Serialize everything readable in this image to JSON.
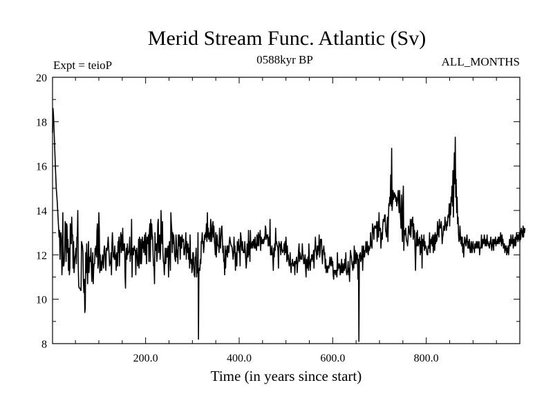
{
  "chart_data": {
    "type": "line",
    "title": "Merid Stream Func. Atlantic (Sv)",
    "subtitle_left": "Expt = teioP",
    "subtitle_center": "0588kyr BP",
    "subtitle_right": "ALL_MONTHS",
    "xlabel": "Time (in years since start)",
    "ylabel": "",
    "xlim": [
      1,
      1000
    ],
    "ylim": [
      8,
      20
    ],
    "x_ticks": [
      200,
      400,
      600,
      800
    ],
    "x_tick_labels": [
      "200.0",
      "400.0",
      "600.0",
      "800.0"
    ],
    "y_ticks": [
      8,
      10,
      12,
      14,
      16,
      18,
      20
    ],
    "y_tick_labels": [
      "8",
      "10",
      "12",
      "14",
      "16",
      "18",
      "20"
    ],
    "grid": false,
    "series": [
      {
        "name": "Merid Stream Func. Atlantic",
        "color": "#000000",
        "x_start": 1,
        "x_step": 1,
        "values": [
          17.5,
          18.6,
          18.3,
          17.8,
          17.2,
          16.6,
          16.0,
          15.5,
          15.0,
          14.7,
          14.4,
          14.0,
          13.6,
          13.2,
          12.8,
          13.1,
          11.8,
          12.9,
          13.0,
          12.7,
          11.1,
          11.6,
          13.9,
          11.5,
          11.5,
          11.7,
          12.3,
          13.5,
          13.4,
          11.7,
          13.4,
          13.3,
          12.1,
          12.7,
          11.3,
          12.3,
          11.1,
          11.4,
          13.4,
          12.5,
          12.5,
          13.7,
          12.9,
          12.9,
          11.4,
          12.6,
          11.2,
          11.5,
          11.9,
          12.0,
          12.3,
          11.6,
          12.8,
          12.8,
          14.0,
          11.5,
          10.6,
          10.5,
          10.5,
          10.5,
          10.4,
          10.4,
          12.6,
          12.5,
          12.4,
          12.1,
          10.8,
          10.3,
          10.9,
          9.4,
          9.6,
          12.1,
          11.2,
          12.5,
          11.4,
          10.7,
          11.9,
          12.6,
          11.2,
          11.7,
          11.9,
          11.7,
          12.3,
          11.5,
          10.8,
          11.6,
          12.1,
          10.7,
          11.4,
          11.6,
          11.6,
          12.3,
          12.0,
          12.4,
          11.9,
          13.1,
          13.4,
          11.4,
          11.6,
          13.9,
          13.2,
          11.2,
          12.0,
          11.3,
          11.7,
          11.3,
          11.8,
          12.0,
          11.6,
          11.4,
          12.2,
          12.4,
          12.1,
          11.7,
          11.3,
          12.3,
          12.2,
          12.2,
          12.5,
          12.8,
          12.3,
          12.0,
          11.5,
          11.7,
          11.6,
          12.1,
          11.1,
          12.5,
          13.0,
          12.5,
          11.9,
          12.1,
          11.8,
          12.4,
          11.8,
          12.0,
          11.3,
          12.1,
          11.5,
          11.5,
          12.6,
          12.1,
          12.8,
          11.5,
          12.3,
          12.7,
          13.0,
          12.1,
          12.9,
          12.2,
          13.2,
          12.2,
          12.5,
          12.2,
          12.5,
          11.1,
          10.5,
          12.0,
          12.3,
          11.8,
          12.5,
          12.0,
          12.1,
          12.1,
          12.3,
          12.8,
          11.7,
          12.1,
          12.0,
          13.6,
          11.0,
          12.2,
          12.3,
          12.0,
          12.3,
          12.4,
          12.2,
          12.2,
          11.1,
          12.2,
          12.3,
          11.9,
          11.5,
          11.6,
          12.7,
          11.4,
          12.8,
          12.2,
          11.6,
          12.7,
          11.6,
          12.0,
          12.8,
          12.3,
          12.6,
          12.1,
          12.6,
          12.9,
          12.0,
          13.0,
          12.2,
          11.6,
          12.8,
          12.7,
          12.5,
          12.9,
          11.7,
          13.0,
          13.4,
          11.7,
          13.6,
          12.7,
          13.4,
          12.9,
          12.8,
          12.0,
          11.5,
          11.5,
          10.7,
          13.0,
          12.2,
          12.4,
          12.5,
          11.7,
          12.1,
          13.4,
          13.6,
          12.1,
          12.5,
          12.9,
          11.8,
          12.2,
          14.0,
          12.8,
          12.5,
          13.5,
          12.1,
          11.7,
          11.6,
          11.1,
          11.8,
          12.3,
          11.6,
          11.9,
          12.3,
          11.9,
          12.0,
          12.4,
          11.0,
          12.2,
          12.6,
          11.9,
          11.3,
          13.9,
          13.4,
          13.1,
          12.1,
          13.0,
          12.5,
          12.9,
          12.5,
          12.0,
          11.8,
          11.7,
          12.9,
          12.5,
          11.9,
          12.2,
          11.6,
          12.9,
          12.4,
          12.9,
          12.7,
          11.8,
          12.8,
          12.8,
          12.3,
          12.9,
          12.6,
          12.6,
          12.7,
          12.0,
          12.0,
          12.3,
          12.5,
          13.0,
          11.8,
          12.6,
          12.3,
          12.1,
          12.5,
          11.8,
          12.3,
          11.4,
          12.9,
          11.9,
          11.6,
          11.8,
          11.2,
          11.4,
          12.1,
          12.1,
          11.4,
          11.1,
          11.0,
          11.9,
          11.8,
          12.3,
          11.0,
          11.7,
          11.2,
          13.0,
          8.2,
          11.3,
          11.4,
          11.3,
          11.8,
          11.6,
          12.6,
          12.6,
          13.0,
          12.5,
          12.6,
          12.1,
          12.4,
          12.9,
          12.7,
          13.0,
          12.8,
          13.4,
          12.6,
          13.9,
          12.8,
          13.2,
          12.7,
          12.8,
          13.0,
          12.6,
          13.6,
          13.4,
          12.6,
          12.8,
          13.3,
          13.5,
          12.8,
          13.3,
          12.6,
          12.4,
          12.0,
          13.0,
          11.9,
          12.3,
          12.9,
          12.5,
          12.4,
          12.4,
          12.1,
          13.2,
          12.6,
          12.3,
          12.8,
          13.2,
          13.3,
          12.8,
          12.1,
          12.4,
          11.7,
          11.8,
          11.1,
          12.4,
          11.4,
          12.2,
          12.0,
          12.4,
          11.9,
          12.4,
          12.4,
          12.1,
          12.6,
          12.8,
          12.6,
          12.5,
          12.4,
          12.4,
          12.3,
          12.1,
          11.8,
          12.0,
          12.8,
          12.1,
          12.4,
          11.3,
          11.8,
          12.1,
          11.5,
          12.6,
          12.3,
          12.2,
          12.7,
          12.1,
          12.4,
          11.5,
          13.0,
          12.8,
          12.4,
          12.2,
          12.6,
          12.3,
          12.1,
          12.1,
          12.1,
          12.6,
          12.2,
          11.8,
          11.4,
          11.7,
          12.5,
          11.9,
          11.9,
          13.1,
          12.0,
          12.6,
          11.7,
          13.1,
          12.3,
          12.3,
          12.5,
          12.6,
          12.3,
          12.6,
          12.7,
          12.4,
          12.3,
          12.8,
          12.3,
          12.5,
          12.2,
          12.9,
          12.4,
          12.5,
          13.0,
          12.4,
          12.9,
          12.8,
          13.1,
          12.2,
          12.8,
          12.7,
          12.5,
          12.6,
          12.7,
          12.5,
          12.6,
          12.8,
          12.7,
          13.3,
          13.2,
          12.7,
          12.8,
          12.9,
          12.9,
          12.4,
          12.6,
          12.8,
          12.4,
          13.6,
          12.0,
          12.3,
          12.0,
          12.4,
          12.1,
          11.9,
          11.3,
          12.3,
          11.9,
          12.5,
          12.2,
          13.2,
          12.5,
          12.6,
          12.4,
          12.4,
          12.2,
          11.4,
          12.6,
          12.4,
          12.5,
          12.3,
          12.0,
          12.6,
          12.3,
          12.2,
          12.1,
          12.2,
          12.2,
          12.5,
          12.0,
          12.6,
          12.1,
          12.8,
          12.4,
          11.7,
          12.4,
          11.8,
          12.0,
          11.7,
          11.5,
          11.6,
          12.1,
          11.5,
          11.2,
          11.6,
          11.6,
          11.8,
          11.5,
          11.6,
          11.5,
          11.7,
          11.1,
          11.7,
          11.6,
          11.8,
          11.9,
          11.2,
          11.6,
          11.7,
          12.2,
          12.5,
          11.7,
          12.1,
          12.0,
          11.8,
          11.9,
          11.8,
          12.5,
          12.0,
          12.0,
          11.6,
          11.6,
          11.8,
          12.0,
          11.4,
          11.0,
          11.8,
          11.4,
          11.5,
          11.9,
          11.3,
          12.5,
          11.8,
          11.5,
          11.3,
          11.8,
          11.7,
          12.0,
          11.8,
          12.0,
          11.7,
          12.2,
          11.4,
          12.2,
          12.3,
          12.8,
          12.2,
          12.1,
          11.8,
          12.4,
          12.0,
          12.4,
          12.2,
          12.9,
          11.9,
          12.1,
          12.7,
          12.6,
          12.7,
          12.0,
          11.6,
          12.2,
          12.2,
          12.4,
          12.0,
          12.1,
          11.4,
          11.8,
          11.2,
          11.5,
          11.4,
          11.2,
          11.5,
          11.4,
          11.4,
          11.6,
          11.9,
          11.6,
          11.5,
          11.9,
          11.8,
          11.5,
          11.7,
          11.1,
          10.9,
          11.3,
          11.2,
          11.3,
          11.1,
          11.3,
          11.2,
          11.0,
          12.1,
          11.3,
          11.6,
          11.4,
          11.4,
          11.6,
          11.1,
          11.5,
          11.2,
          11.8,
          11.2,
          11.6,
          11.2,
          11.3,
          11.6,
          11.3,
          11.8,
          11.4,
          12.1,
          11.3,
          11.1,
          11.2,
          11.3,
          11.7,
          11.1,
          11.4,
          10.8,
          11.7,
          12.2,
          12.0,
          11.9,
          11.6,
          11.5,
          11.3,
          11.7,
          11.4,
          12.4,
          11.6,
          12.2,
          11.8,
          11.6,
          12.1,
          11.8,
          12.0,
          10.9,
          11.8,
          8.1,
          12.0,
          12.0,
          12.1,
          11.7,
          11.8,
          12.0,
          12.4,
          11.3,
          12.0,
          12.4,
          11.9,
          11.9,
          12.2,
          12.2,
          12.6,
          12.1,
          12.3,
          12.6,
          12.1,
          12.0,
          12.4,
          12.2,
          12.3,
          12.3,
          13.0,
          12.4,
          12.6,
          12.3,
          13.4,
          13.0,
          13.2,
          12.7,
          13.3,
          13.2,
          13.3,
          13.2,
          13.2,
          13.5,
          12.6,
          13.0,
          13.5,
          12.8,
          13.9,
          13.1,
          13.1,
          13.2,
          12.3,
          12.7,
          13.0,
          12.7,
          13.3,
          13.6,
          13.6,
          13.5,
          13.8,
          13.8,
          13.1,
          13.0,
          12.8,
          13.3,
          13.7,
          12.6,
          13.6,
          14.3,
          14.2,
          14.6,
          14.3,
          15.6,
          14.2,
          16.8,
          14.0,
          14.4,
          14.9,
          14.5,
          14.6,
          14.8,
          14.6,
          14.7,
          14.4,
          14.6,
          14.2,
          14.4,
          14.6,
          14.9,
          14.3,
          13.9,
          14.9,
          14.1,
          13.7,
          13.2,
          14.7,
          13.4,
          12.6,
          14.4,
          15.1,
          12.2,
          12.9,
          13.1,
          12.9,
          13.2,
          12.8,
          12.6,
          12.6,
          12.4,
          12.7,
          13.3,
          13.1,
          13.0,
          12.9,
          13.6,
          12.8,
          13.4,
          13.6,
          13.3,
          13.7,
          12.7,
          13.4,
          12.8,
          13.1,
          12.2,
          11.3,
          12.3,
          13.0,
          12.4,
          13.1,
          12.5,
          12.4,
          12.7,
          12.5,
          12.8,
          12.0,
          12.6,
          12.1,
          12.9,
          11.4,
          12.7,
          12.4,
          12.4,
          12.9,
          12.2,
          12.6,
          12.3,
          12.4,
          12.3,
          12.1,
          12.0,
          12.0,
          12.4,
          12.3,
          12.3,
          13.0,
          12.1,
          12.5,
          12.7,
          12.5,
          12.8,
          12.4,
          12.9,
          12.1,
          12.6,
          12.9,
          12.2,
          13.0,
          12.5,
          12.9,
          12.6,
          12.7,
          13.5,
          12.9,
          13.3,
          12.8,
          13.6,
          13.2,
          13.2,
          13.3,
          13.5,
          13.1,
          12.5,
          12.8,
          12.9,
          13.3,
          13.1,
          13.1,
          13.7,
          13.4,
          13.3,
          13.1,
          13.5,
          13.3,
          13.7,
          13.8,
          13.7,
          14.3,
          13.3,
          14.3,
          13.8,
          14.6,
          14.4,
          15.1,
          14.2,
          15.8,
          13.7,
          15.4,
          16.6,
          15.2,
          17.3,
          14.6,
          15.4,
          13.9,
          14.6,
          13.4,
          13.7,
          12.9,
          12.6,
          12.7,
          13.3,
          12.9,
          12.5,
          12.8,
          12.4,
          12.8,
          12.1,
          12.5,
          11.9,
          12.4,
          12.8,
          12.7,
          12.5,
          12.4,
          12.7,
          12.9,
          12.6,
          12.3,
          12.6,
          12.3,
          12.7,
          12.4,
          12.1,
          12.1,
          12.6,
          12.5,
          12.1,
          12.3,
          12.6,
          12.3,
          12.3,
          12.1,
          12.5,
          12.4,
          12.3,
          12.6,
          12.4,
          12.3,
          12.6,
          12.4,
          12.3,
          12.6,
          12.0,
          12.3,
          12.3,
          12.4,
          12.9,
          12.3,
          12.4,
          12.7,
          12.6,
          12.5,
          12.9,
          12.7,
          12.4,
          12.6,
          12.7,
          12.4,
          12.9,
          12.5,
          12.6,
          12.4,
          12.5,
          12.3,
          12.6,
          12.5,
          12.8,
          12.4,
          12.2,
          12.4,
          12.7,
          12.6,
          12.2,
          12.7,
          12.5,
          12.5,
          12.8,
          12.4,
          12.6,
          12.5,
          12.7,
          12.5,
          12.8,
          12.7,
          12.5,
          12.8,
          12.6,
          13.0,
          12.6,
          12.4,
          12.9,
          12.5,
          12.7,
          12.3,
          12.4,
          12.5,
          12.1,
          12.4,
          12.2,
          12.4,
          12.0,
          12.3,
          12.1,
          12.4,
          12.0,
          12.3,
          12.7,
          12.5,
          12.4,
          12.9,
          12.6,
          12.5,
          12.6,
          12.9,
          12.3,
          12.7,
          12.4,
          12.6,
          12.8,
          12.4,
          12.6,
          13.0,
          12.7,
          12.9,
          12.6,
          12.9,
          12.7,
          13.0,
          12.6,
          13.1,
          12.7,
          13.2,
          13.1,
          13.0,
          12.8,
          13.3,
          12.8,
          13.2,
          13.0,
          13.2
        ]
      }
    ]
  }
}
